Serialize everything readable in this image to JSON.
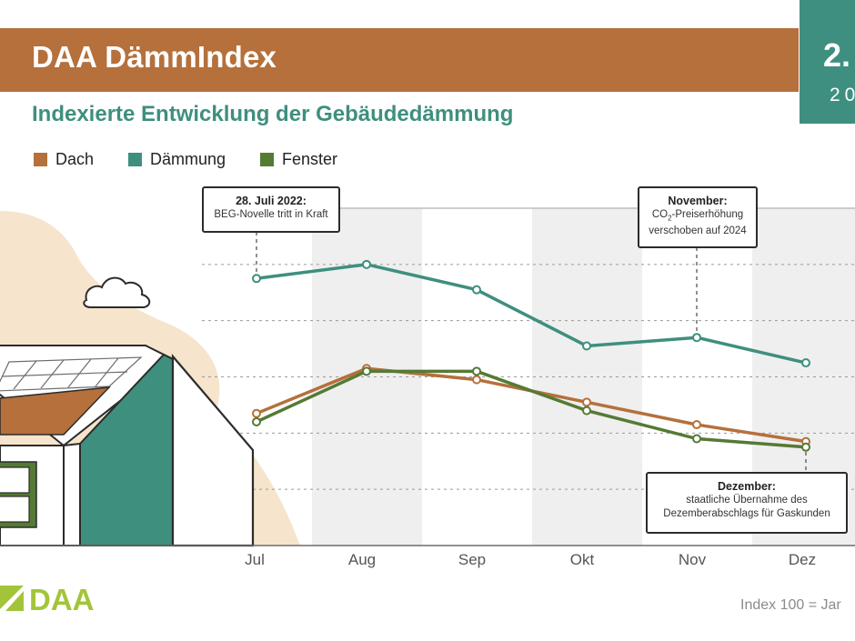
{
  "header": {
    "title": "DAA DämmIndex",
    "badge_big": "2.",
    "badge_small": "20"
  },
  "subtitle": "Indexierte Entwicklung der Gebäudedämmung",
  "legend": [
    {
      "label": "Dach",
      "color": "#b5703b"
    },
    {
      "label": "Dämmung",
      "color": "#3e8f7e"
    },
    {
      "label": "Fenster",
      "color": "#557a34"
    }
  ],
  "annotations": {
    "july": {
      "title": "28. Juli 2022:",
      "text": "BEG-Novelle tritt in Kraft"
    },
    "november": {
      "title": "November:",
      "text_a": "CO",
      "text_sub": "2",
      "text_b": "-Preiserhöhung",
      "text_line2": "verschoben auf 2024"
    },
    "december": {
      "title": "Dezember:",
      "text_line1": "staatliche Übernahme des",
      "text_line2": "Dezemberabschlags für Gaskunden"
    }
  },
  "footer": {
    "logo_text": "DAA",
    "note": "Index 100 = Jar"
  },
  "chart_data": {
    "type": "line",
    "categories": [
      "Jul",
      "Aug",
      "Sep",
      "Okt",
      "Nov",
      "Dez"
    ],
    "series": [
      {
        "name": "Dämmung",
        "color": "#3e8f7e",
        "values": [
          127.5,
          130,
          125.5,
          115.5,
          117,
          112.5
        ]
      },
      {
        "name": "Dach",
        "color": "#b5703b",
        "values": [
          103.5,
          111.5,
          109.5,
          105.5,
          101.5,
          98.5
        ]
      },
      {
        "name": "Fenster",
        "color": "#557a34",
        "values": [
          102,
          111,
          111,
          104,
          99,
          97.5
        ]
      }
    ],
    "ylim": [
      80,
      140
    ],
    "grid": "dashed horizontal, alternating grey month bands",
    "xlabel": "",
    "ylabel": ""
  }
}
